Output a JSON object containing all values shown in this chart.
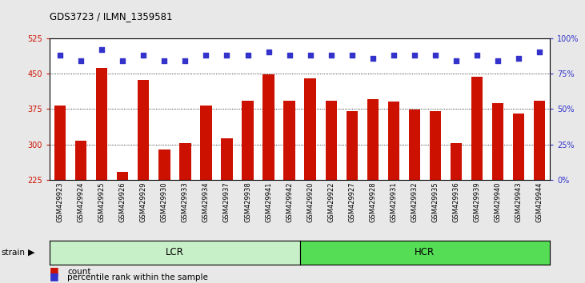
{
  "title": "GDS3723 / ILMN_1359581",
  "samples": [
    "GSM429923",
    "GSM429924",
    "GSM429925",
    "GSM429926",
    "GSM429929",
    "GSM429930",
    "GSM429933",
    "GSM429934",
    "GSM429937",
    "GSM429938",
    "GSM429941",
    "GSM429942",
    "GSM429920",
    "GSM429922",
    "GSM429927",
    "GSM429928",
    "GSM429931",
    "GSM429932",
    "GSM429935",
    "GSM429936",
    "GSM429939",
    "GSM429940",
    "GSM429943",
    "GSM429944"
  ],
  "counts": [
    383,
    308,
    462,
    241,
    437,
    289,
    302,
    383,
    313,
    392,
    449,
    392,
    440,
    392,
    370,
    395,
    390,
    373,
    370,
    302,
    443,
    387,
    365,
    393
  ],
  "percentile_ranks": [
    88,
    84,
    92,
    84,
    88,
    84,
    84,
    88,
    88,
    88,
    90,
    88,
    88,
    88,
    88,
    86,
    88,
    88,
    88,
    84,
    88,
    84,
    86,
    90
  ],
  "lcr_count": 12,
  "hcr_count": 12,
  "bar_color": "#cc1100",
  "dot_color": "#3333cc",
  "ylim_left": [
    225,
    525
  ],
  "yticks_left": [
    225,
    300,
    375,
    450,
    525
  ],
  "ylim_right": [
    0,
    100
  ],
  "yticks_right": [
    0,
    25,
    50,
    75,
    100
  ],
  "grid_values": [
    300,
    375,
    450
  ],
  "lcr_color": "#c8f0c8",
  "hcr_color": "#55dd55",
  "strain_label": "strain",
  "lcr_label": "LCR",
  "hcr_label": "HCR",
  "legend_count": "count",
  "legend_percentile": "percentile rank within the sample",
  "bg_color": "#e8e8e8",
  "plot_bg": "#ffffff"
}
